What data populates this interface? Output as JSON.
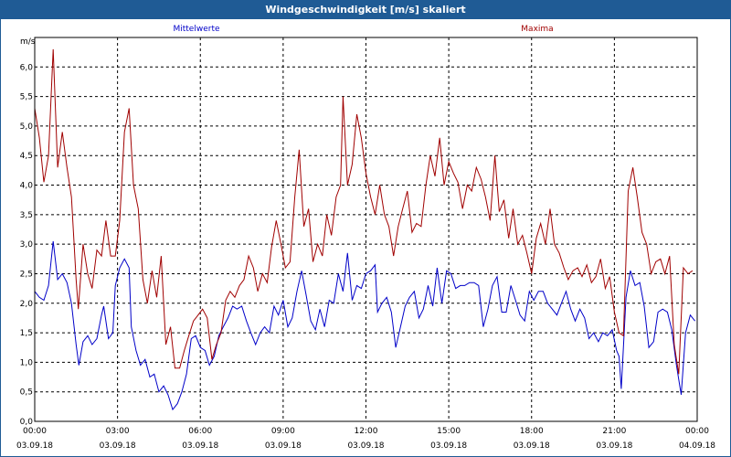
{
  "window": {
    "title": "Windgeschwindigkeit [m/s] skaliert"
  },
  "colors": {
    "titlebar": "#1f5b95",
    "mean": "#0000c8",
    "max": "#a00000",
    "grid": "#000000"
  },
  "chart_data": {
    "type": "line",
    "title": "Windgeschwindigkeit [m/s] skaliert",
    "ylabel": "m/s",
    "ylim": [
      0,
      6.5
    ],
    "xlim": [
      0,
      24
    ],
    "grid": true,
    "y_ticks": [
      "0,0",
      "0,5",
      "1,0",
      "1,5",
      "2,0",
      "2,5",
      "3,0",
      "3,5",
      "4,0",
      "4,5",
      "5,0",
      "5,5",
      "6,0"
    ],
    "x_ticks": [
      {
        "time": "00:00",
        "date": "03.09.18",
        "h": 0
      },
      {
        "time": "03:00",
        "date": "03.09.18",
        "h": 3
      },
      {
        "time": "06:00",
        "date": "03.09.18",
        "h": 6
      },
      {
        "time": "09:00",
        "date": "03.09.18",
        "h": 9
      },
      {
        "time": "12:00",
        "date": "03.09.18",
        "h": 12
      },
      {
        "time": "15:00",
        "date": "03.09.18",
        "h": 15
      },
      {
        "time": "18:00",
        "date": "03.09.18",
        "h": 18
      },
      {
        "time": "21:00",
        "date": "03.09.18",
        "h": 21
      },
      {
        "time": "00:00",
        "date": "04.09.18",
        "h": 24
      }
    ],
    "series": [
      {
        "name": "Mittelwerte",
        "color": "#0000c8",
        "points": [
          [
            0,
            2.2
          ],
          [
            0.17,
            2.1
          ],
          [
            0.33,
            2.05
          ],
          [
            0.5,
            2.3
          ],
          [
            0.67,
            3.05
          ],
          [
            0.83,
            2.4
          ],
          [
            1.0,
            2.5
          ],
          [
            1.17,
            2.35
          ],
          [
            1.33,
            2.0
          ],
          [
            1.5,
            1.3
          ],
          [
            1.6,
            0.95
          ],
          [
            1.75,
            1.35
          ],
          [
            1.92,
            1.45
          ],
          [
            2.08,
            1.3
          ],
          [
            2.25,
            1.4
          ],
          [
            2.42,
            1.8
          ],
          [
            2.5,
            1.95
          ],
          [
            2.67,
            1.4
          ],
          [
            2.83,
            1.5
          ],
          [
            2.92,
            2.3
          ],
          [
            3.08,
            2.6
          ],
          [
            3.25,
            2.75
          ],
          [
            3.42,
            2.6
          ],
          [
            3.5,
            1.6
          ],
          [
            3.67,
            1.2
          ],
          [
            3.83,
            0.95
          ],
          [
            4.0,
            1.05
          ],
          [
            4.17,
            0.75
          ],
          [
            4.33,
            0.8
          ],
          [
            4.5,
            0.5
          ],
          [
            4.67,
            0.6
          ],
          [
            4.83,
            0.45
          ],
          [
            5.0,
            0.2
          ],
          [
            5.17,
            0.3
          ],
          [
            5.33,
            0.5
          ],
          [
            5.5,
            0.8
          ],
          [
            5.67,
            1.4
          ],
          [
            5.83,
            1.45
          ],
          [
            6.0,
            1.25
          ],
          [
            6.17,
            1.2
          ],
          [
            6.33,
            0.95
          ],
          [
            6.5,
            1.1
          ],
          [
            6.67,
            1.45
          ],
          [
            6.83,
            1.6
          ],
          [
            7.0,
            1.75
          ],
          [
            7.17,
            1.95
          ],
          [
            7.33,
            1.9
          ],
          [
            7.5,
            1.95
          ],
          [
            7.67,
            1.7
          ],
          [
            7.83,
            1.5
          ],
          [
            8.0,
            1.3
          ],
          [
            8.17,
            1.5
          ],
          [
            8.33,
            1.6
          ],
          [
            8.5,
            1.5
          ],
          [
            8.67,
            1.95
          ],
          [
            8.83,
            1.8
          ],
          [
            9.0,
            2.05
          ],
          [
            9.17,
            1.6
          ],
          [
            9.33,
            1.75
          ],
          [
            9.5,
            2.2
          ],
          [
            9.67,
            2.55
          ],
          [
            9.83,
            2.15
          ],
          [
            10.0,
            1.7
          ],
          [
            10.17,
            1.55
          ],
          [
            10.33,
            1.9
          ],
          [
            10.5,
            1.6
          ],
          [
            10.67,
            2.05
          ],
          [
            10.83,
            2.0
          ],
          [
            11.0,
            2.5
          ],
          [
            11.17,
            2.2
          ],
          [
            11.33,
            2.85
          ],
          [
            11.5,
            2.05
          ],
          [
            11.67,
            2.3
          ],
          [
            11.83,
            2.25
          ],
          [
            12.0,
            2.5
          ],
          [
            12.17,
            2.55
          ],
          [
            12.33,
            2.65
          ],
          [
            12.42,
            1.85
          ],
          [
            12.58,
            2.0
          ],
          [
            12.75,
            2.1
          ],
          [
            12.92,
            1.85
          ],
          [
            13.08,
            1.25
          ],
          [
            13.25,
            1.6
          ],
          [
            13.42,
            1.95
          ],
          [
            13.58,
            2.1
          ],
          [
            13.75,
            2.2
          ],
          [
            13.92,
            1.75
          ],
          [
            14.08,
            1.9
          ],
          [
            14.25,
            2.3
          ],
          [
            14.42,
            1.95
          ],
          [
            14.58,
            2.6
          ],
          [
            14.75,
            2.0
          ],
          [
            14.92,
            2.55
          ],
          [
            15.08,
            2.5
          ],
          [
            15.25,
            2.25
          ],
          [
            15.42,
            2.3
          ],
          [
            15.58,
            2.3
          ],
          [
            15.75,
            2.35
          ],
          [
            15.92,
            2.35
          ],
          [
            16.08,
            2.3
          ],
          [
            16.25,
            1.6
          ],
          [
            16.42,
            1.9
          ],
          [
            16.58,
            2.3
          ],
          [
            16.75,
            2.45
          ],
          [
            16.92,
            1.85
          ],
          [
            17.08,
            1.85
          ],
          [
            17.25,
            2.3
          ],
          [
            17.42,
            2.05
          ],
          [
            17.58,
            1.8
          ],
          [
            17.75,
            1.7
          ],
          [
            17.92,
            2.2
          ],
          [
            18.08,
            2.05
          ],
          [
            18.25,
            2.2
          ],
          [
            18.42,
            2.2
          ],
          [
            18.58,
            2.0
          ],
          [
            18.75,
            1.9
          ],
          [
            18.92,
            1.8
          ],
          [
            19.08,
            2.0
          ],
          [
            19.25,
            2.2
          ],
          [
            19.42,
            1.9
          ],
          [
            19.58,
            1.7
          ],
          [
            19.75,
            1.9
          ],
          [
            19.92,
            1.75
          ],
          [
            20.08,
            1.4
          ],
          [
            20.25,
            1.5
          ],
          [
            20.42,
            1.35
          ],
          [
            20.58,
            1.5
          ],
          [
            20.75,
            1.45
          ],
          [
            20.92,
            1.55
          ],
          [
            21.08,
            1.2
          ],
          [
            21.17,
            1.1
          ],
          [
            21.25,
            0.55
          ],
          [
            21.42,
            2.1
          ],
          [
            21.58,
            2.55
          ],
          [
            21.75,
            2.3
          ],
          [
            21.92,
            2.35
          ],
          [
            22.08,
            1.95
          ],
          [
            22.25,
            1.25
          ],
          [
            22.42,
            1.35
          ],
          [
            22.58,
            1.85
          ],
          [
            22.75,
            1.9
          ],
          [
            22.92,
            1.85
          ],
          [
            23.08,
            1.55
          ],
          [
            23.25,
            0.95
          ],
          [
            23.42,
            0.45
          ],
          [
            23.58,
            1.5
          ],
          [
            23.75,
            1.8
          ],
          [
            23.92,
            1.7
          ]
        ]
      },
      {
        "name": "Maxima",
        "color": "#a00000",
        "points": [
          [
            0,
            5.3
          ],
          [
            0.17,
            4.8
          ],
          [
            0.33,
            4.05
          ],
          [
            0.5,
            4.5
          ],
          [
            0.67,
            6.3
          ],
          [
            0.83,
            4.3
          ],
          [
            1.0,
            4.9
          ],
          [
            1.17,
            4.3
          ],
          [
            1.33,
            3.8
          ],
          [
            1.5,
            2.4
          ],
          [
            1.58,
            1.9
          ],
          [
            1.75,
            3.0
          ],
          [
            1.92,
            2.5
          ],
          [
            2.08,
            2.25
          ],
          [
            2.25,
            2.9
          ],
          [
            2.42,
            2.8
          ],
          [
            2.58,
            3.4
          ],
          [
            2.75,
            2.8
          ],
          [
            2.92,
            2.8
          ],
          [
            3.08,
            3.4
          ],
          [
            3.25,
            4.9
          ],
          [
            3.42,
            5.3
          ],
          [
            3.58,
            4.0
          ],
          [
            3.75,
            3.6
          ],
          [
            3.92,
            2.4
          ],
          [
            4.08,
            2.0
          ],
          [
            4.25,
            2.55
          ],
          [
            4.42,
            2.1
          ],
          [
            4.58,
            2.8
          ],
          [
            4.75,
            1.3
          ],
          [
            4.92,
            1.6
          ],
          [
            5.08,
            0.9
          ],
          [
            5.25,
            0.9
          ],
          [
            5.42,
            1.2
          ],
          [
            5.58,
            1.45
          ],
          [
            5.75,
            1.7
          ],
          [
            5.92,
            1.8
          ],
          [
            6.08,
            1.9
          ],
          [
            6.25,
            1.75
          ],
          [
            6.42,
            1.05
          ],
          [
            6.58,
            1.3
          ],
          [
            6.75,
            1.5
          ],
          [
            6.92,
            2.05
          ],
          [
            7.08,
            2.2
          ],
          [
            7.25,
            2.1
          ],
          [
            7.42,
            2.3
          ],
          [
            7.58,
            2.4
          ],
          [
            7.75,
            2.8
          ],
          [
            7.92,
            2.6
          ],
          [
            8.08,
            2.2
          ],
          [
            8.25,
            2.5
          ],
          [
            8.42,
            2.35
          ],
          [
            8.58,
            2.95
          ],
          [
            8.75,
            3.4
          ],
          [
            8.92,
            3.0
          ],
          [
            9.08,
            2.6
          ],
          [
            9.25,
            2.7
          ],
          [
            9.42,
            3.8
          ],
          [
            9.58,
            4.6
          ],
          [
            9.75,
            3.3
          ],
          [
            9.92,
            3.6
          ],
          [
            10.08,
            2.7
          ],
          [
            10.25,
            3.0
          ],
          [
            10.42,
            2.8
          ],
          [
            10.58,
            3.5
          ],
          [
            10.75,
            3.15
          ],
          [
            10.92,
            3.8
          ],
          [
            11.08,
            4.0
          ],
          [
            11.17,
            5.5
          ],
          [
            11.33,
            4.0
          ],
          [
            11.5,
            4.35
          ],
          [
            11.67,
            5.2
          ],
          [
            11.83,
            4.8
          ],
          [
            12.0,
            4.2
          ],
          [
            12.17,
            3.8
          ],
          [
            12.33,
            3.5
          ],
          [
            12.5,
            4.0
          ],
          [
            12.67,
            3.5
          ],
          [
            12.83,
            3.3
          ],
          [
            13.0,
            2.8
          ],
          [
            13.17,
            3.3
          ],
          [
            13.33,
            3.6
          ],
          [
            13.5,
            3.9
          ],
          [
            13.67,
            3.2
          ],
          [
            13.83,
            3.35
          ],
          [
            14.0,
            3.3
          ],
          [
            14.17,
            4.0
          ],
          [
            14.33,
            4.5
          ],
          [
            14.5,
            4.15
          ],
          [
            14.67,
            4.8
          ],
          [
            14.83,
            4.0
          ],
          [
            15.0,
            4.4
          ],
          [
            15.17,
            4.2
          ],
          [
            15.33,
            4.05
          ],
          [
            15.5,
            3.6
          ],
          [
            15.67,
            4.0
          ],
          [
            15.83,
            3.9
          ],
          [
            16.0,
            4.3
          ],
          [
            16.17,
            4.1
          ],
          [
            16.33,
            3.8
          ],
          [
            16.5,
            3.4
          ],
          [
            16.67,
            4.5
          ],
          [
            16.83,
            3.55
          ],
          [
            17.0,
            3.75
          ],
          [
            17.17,
            3.1
          ],
          [
            17.33,
            3.6
          ],
          [
            17.5,
            3.0
          ],
          [
            17.67,
            3.15
          ],
          [
            17.83,
            2.85
          ],
          [
            18.0,
            2.5
          ],
          [
            18.17,
            3.1
          ],
          [
            18.33,
            3.35
          ],
          [
            18.5,
            3.0
          ],
          [
            18.67,
            3.6
          ],
          [
            18.83,
            3.0
          ],
          [
            19.0,
            2.85
          ],
          [
            19.17,
            2.6
          ],
          [
            19.33,
            2.4
          ],
          [
            19.5,
            2.55
          ],
          [
            19.67,
            2.6
          ],
          [
            19.83,
            2.45
          ],
          [
            20.0,
            2.65
          ],
          [
            20.17,
            2.35
          ],
          [
            20.33,
            2.45
          ],
          [
            20.5,
            2.75
          ],
          [
            20.67,
            2.25
          ],
          [
            20.83,
            2.45
          ],
          [
            21.0,
            1.85
          ],
          [
            21.17,
            1.5
          ],
          [
            21.33,
            1.45
          ],
          [
            21.5,
            3.9
          ],
          [
            21.67,
            4.3
          ],
          [
            21.83,
            3.8
          ],
          [
            22.0,
            3.2
          ],
          [
            22.17,
            3.0
          ],
          [
            22.33,
            2.5
          ],
          [
            22.5,
            2.7
          ],
          [
            22.67,
            2.75
          ],
          [
            22.83,
            2.5
          ],
          [
            23.0,
            2.8
          ],
          [
            23.17,
            1.3
          ],
          [
            23.33,
            0.8
          ],
          [
            23.5,
            2.6
          ],
          [
            23.67,
            2.5
          ],
          [
            23.83,
            2.55
          ]
        ]
      }
    ]
  }
}
